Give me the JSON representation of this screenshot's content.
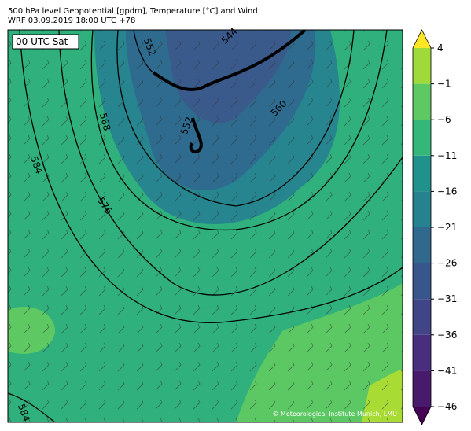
{
  "header": {
    "title": "500 hPa level Geopotential [gpdm], Temperature [°C] and Wind",
    "subtitle": "WRF 03.09.2019 18:00 UTC +78"
  },
  "map": {
    "time_label": "00 UTC Sat",
    "credit": "© Meteorological Institute Munich, LMU",
    "contour_labels": [
      552,
      544,
      560,
      568,
      584,
      576,
      552,
      584
    ]
  },
  "colorbar": {
    "ticks": [
      {
        "value": -46,
        "label": "−46"
      },
      {
        "value": -41,
        "label": "−41"
      },
      {
        "value": -36,
        "label": "−36"
      },
      {
        "value": -31,
        "label": "−31"
      },
      {
        "value": -26,
        "label": "−26"
      },
      {
        "value": -21,
        "label": "−21"
      },
      {
        "value": -16,
        "label": "−16"
      },
      {
        "value": -11,
        "label": "−11"
      },
      {
        "value": -6,
        "label": "−6"
      },
      {
        "value": -1,
        "label": "−1"
      },
      4
    ],
    "colors": [
      "#440154",
      "#481a6c",
      "#472f7d",
      "#414487",
      "#39568c",
      "#31688e",
      "#26828e",
      "#21918c",
      "#35b779",
      "#5ec962",
      "#9fda3a",
      "#e2e418",
      "#fde725"
    ]
  }
}
